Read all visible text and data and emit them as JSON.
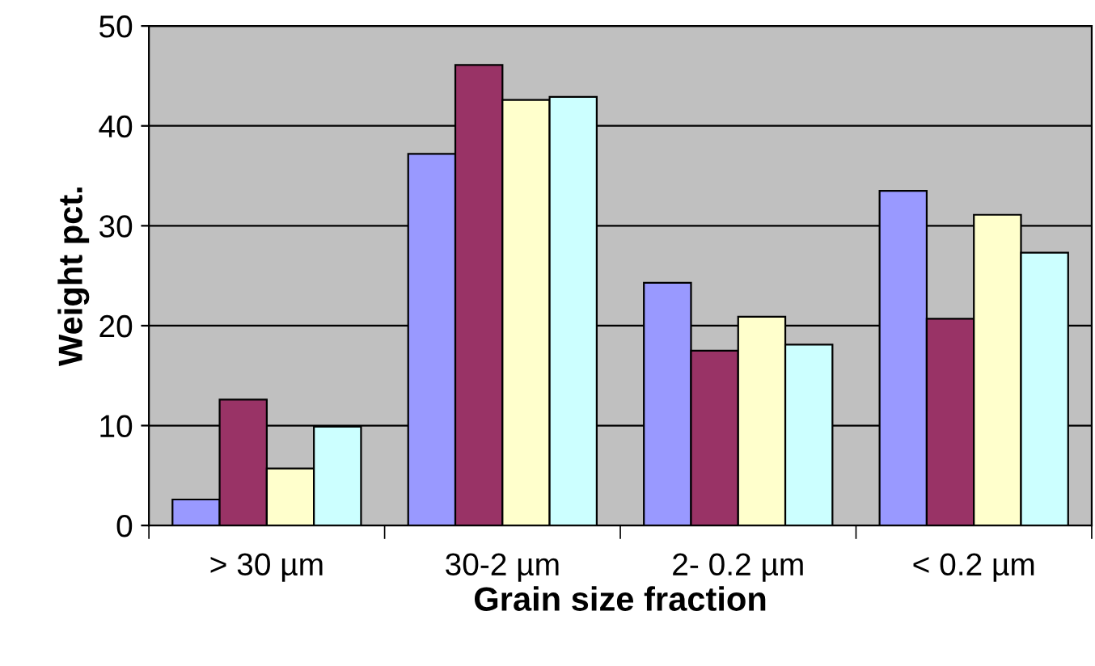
{
  "chart_data": {
    "type": "bar",
    "xlabel": "Grain size fraction",
    "ylabel": "Weight pct.",
    "categories": [
      "> 30 µm",
      "30-2 µm",
      "2- 0.2 µm",
      "< 0.2 µm"
    ],
    "series": [
      {
        "color": "#9999ff",
        "values": [
          2.6,
          37.2,
          24.3,
          33.5
        ]
      },
      {
        "color": "#993366",
        "values": [
          12.6,
          46.1,
          17.5,
          20.7
        ]
      },
      {
        "color": "#ffffcc",
        "values": [
          5.7,
          42.6,
          20.9,
          31.1
        ]
      },
      {
        "color": "#ccffff",
        "values": [
          9.9,
          42.9,
          18.1,
          27.3
        ]
      }
    ],
    "ylim": [
      0,
      50
    ],
    "yticks": [
      0,
      10,
      20,
      30,
      40,
      50
    ],
    "grid": "y"
  }
}
